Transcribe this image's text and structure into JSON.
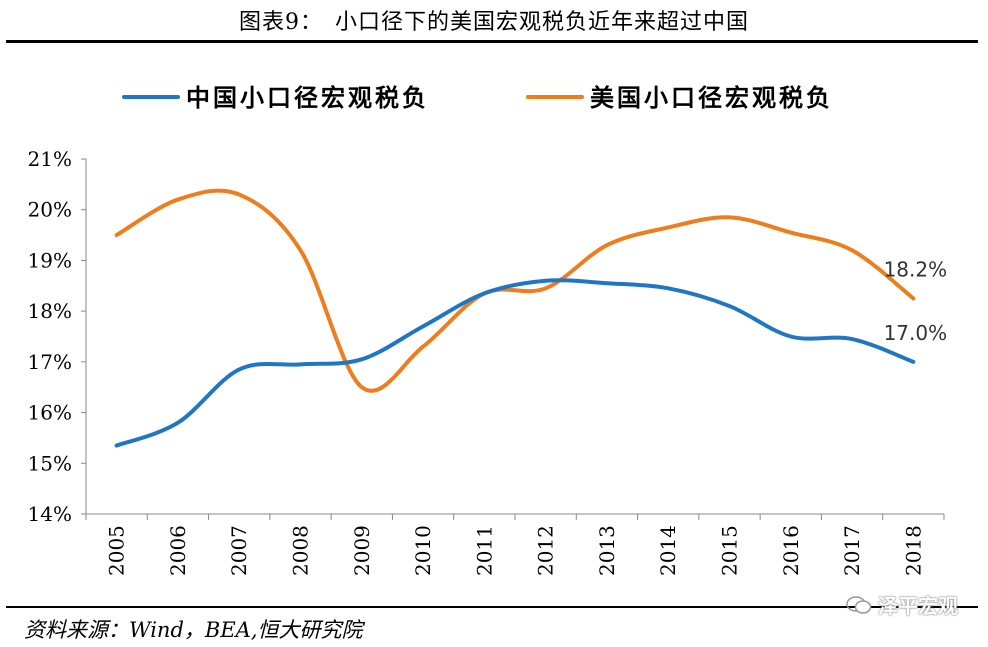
{
  "header": {
    "title": "图表9：　小口径下的美国宏观税负近年来超过中国"
  },
  "footer": {
    "source": "资料来源：Wind，BEA,恒大研究院",
    "watermark": "泽平宏观"
  },
  "chart_data": {
    "type": "line",
    "x": [
      "2005",
      "2006",
      "2007",
      "2008",
      "2009",
      "2010",
      "2011",
      "2012",
      "2013",
      "2014",
      "2015",
      "2016",
      "2017",
      "2018"
    ],
    "ylim": [
      14,
      21
    ],
    "yticks": [
      "14%",
      "15%",
      "16%",
      "17%",
      "18%",
      "19%",
      "20%",
      "21%"
    ],
    "legend_position": "top",
    "grid": false,
    "series": [
      {
        "name": "中国小口径宏观税负",
        "color": "#1f77c4",
        "values": [
          15.35,
          15.8,
          16.85,
          16.95,
          17.05,
          17.7,
          18.35,
          18.6,
          18.55,
          18.45,
          18.1,
          17.5,
          17.45,
          17.0
        ]
      },
      {
        "name": "美国小口径宏观税负",
        "color": "#ee7d1e",
        "values": [
          19.5,
          20.2,
          20.3,
          19.2,
          16.5,
          17.3,
          18.35,
          18.45,
          19.3,
          19.65,
          19.85,
          19.55,
          19.2,
          18.25
        ]
      }
    ],
    "annotations": [
      {
        "series": 1,
        "x": "2018",
        "text": "18.2%"
      },
      {
        "series": 0,
        "x": "2018",
        "text": "17.0%"
      }
    ]
  }
}
